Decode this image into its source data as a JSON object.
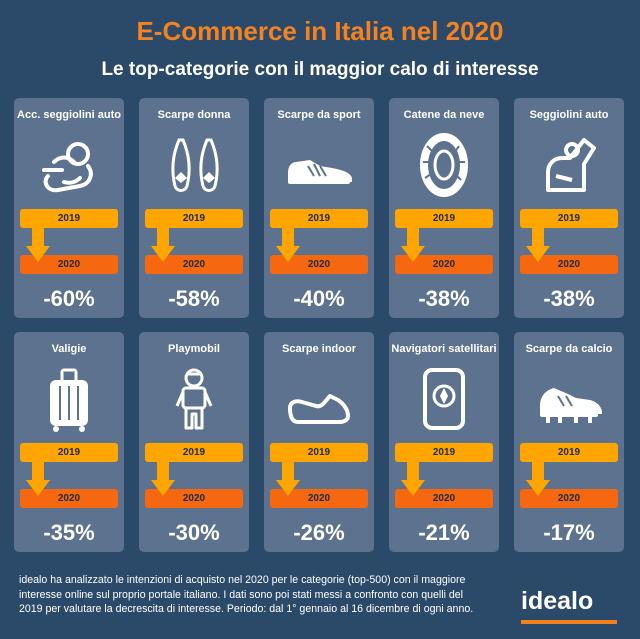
{
  "title": "E-Commerce in Italia nel 2020",
  "subtitle": "Le top-categorie con il maggior calo di interesse",
  "year_from": "2019",
  "year_to": "2020",
  "colors": {
    "title": "#f58220",
    "bar_2019": "#ffa500",
    "bar_2020": "#f5680f",
    "card": "#5c728e",
    "background": "#2b4969"
  },
  "categories": [
    {
      "name": "Acc. seggiolini auto",
      "change": "-60%",
      "icon": "baby-seat-accessory-icon"
    },
    {
      "name": "Scarpe donna",
      "change": "-58%",
      "icon": "ballet-flats-icon"
    },
    {
      "name": "Scarpe da sport",
      "change": "-40%",
      "icon": "sneaker-icon"
    },
    {
      "name": "Catene da neve",
      "change": "-38%",
      "icon": "snow-chain-tire-icon"
    },
    {
      "name": "Seggiolini auto",
      "change": "-38%",
      "icon": "car-seat-icon"
    },
    {
      "name": "Valigie",
      "change": "-35%",
      "icon": "suitcase-icon"
    },
    {
      "name": "Playmobil",
      "change": "-30%",
      "icon": "playmobil-figure-icon"
    },
    {
      "name": "Scarpe indoor",
      "change": "-26%",
      "icon": "indoor-shoe-icon"
    },
    {
      "name": "Navigatori satellitari",
      "change": "-21%",
      "icon": "gps-navigator-icon"
    },
    {
      "name": "Scarpe da calcio",
      "change": "-17%",
      "icon": "football-boot-icon"
    }
  ],
  "footer": "idealo ha analizzato le intenzioni di acquisto nel 2020 per le categorie (top-500) con il maggiore interesse online sul proprio portale italiano. I dati sono poi stati messi a confronto con quelli del 2019 per valutare la decrescita di interesse. Periodo: dal 1° gennaio al 16 dicembre di ogni anno.",
  "logo": "idealo"
}
